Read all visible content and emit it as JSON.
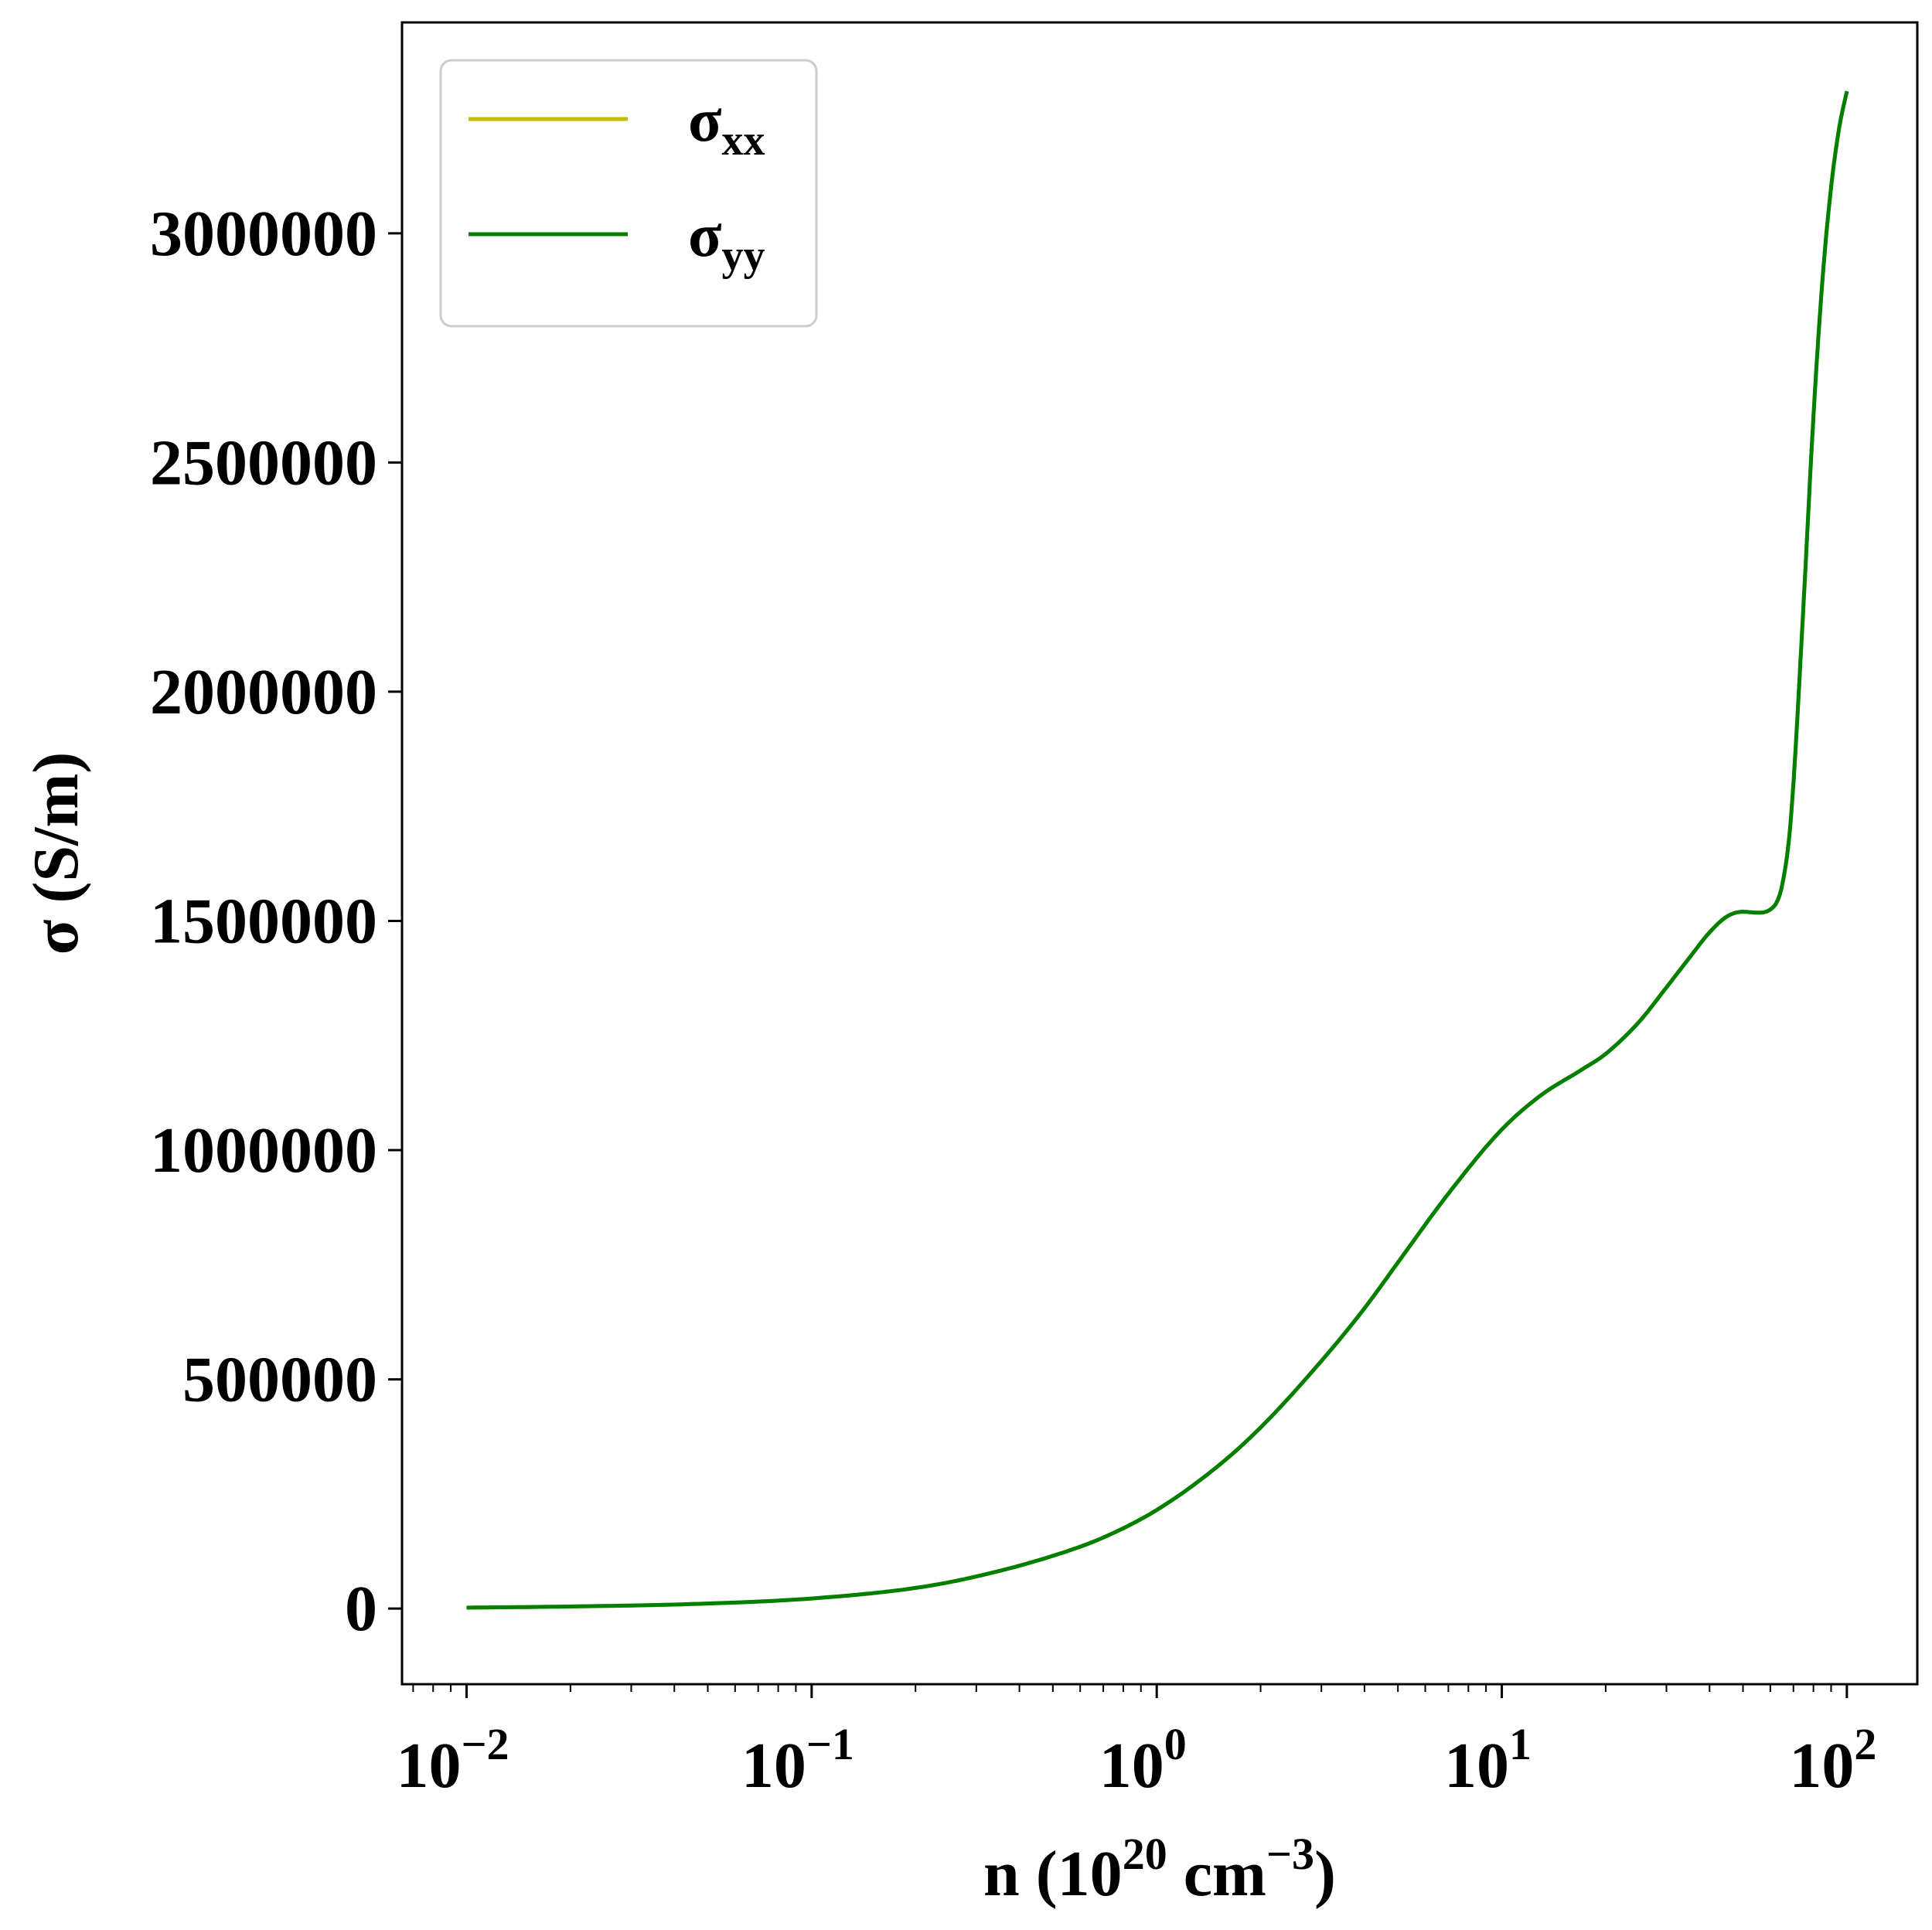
{
  "chart_data": {
    "type": "line",
    "title": "",
    "xlabel": {
      "prefix": "n (10",
      "sup1": "20",
      "mid": " cm",
      "sup2": "−3",
      "suffix": ")"
    },
    "ylabel": "σ (S/m)",
    "x_scale": "log",
    "xlim": [
      0.0065,
      160
    ],
    "ylim": [
      -165000,
      3460000
    ],
    "x_ticks": [
      {
        "value": 0.01,
        "base": "10",
        "exp": "−2"
      },
      {
        "value": 0.1,
        "base": "10",
        "exp": "−1"
      },
      {
        "value": 1,
        "base": "10",
        "exp": "0"
      },
      {
        "value": 10,
        "base": "10",
        "exp": "1"
      },
      {
        "value": 100,
        "base": "10",
        "exp": "2"
      }
    ],
    "y_ticks": [
      0,
      500000,
      1000000,
      1500000,
      2000000,
      2500000,
      3000000
    ],
    "y_tick_labels": [
      "0",
      "500000",
      "1000000",
      "1500000",
      "2000000",
      "2500000",
      "3000000"
    ],
    "grid": false,
    "legend": {
      "position": "top-left",
      "entries": [
        {
          "symbol": "σ",
          "sub": "xx",
          "color": "#bfbf00"
        },
        {
          "symbol": "σ",
          "sub": "yy",
          "color": "#007f00"
        }
      ]
    },
    "series": [
      {
        "name": "σxx",
        "color": "#bfbf00",
        "x": [
          0.01,
          0.02,
          0.05,
          0.1,
          0.2,
          0.3,
          0.5,
          0.7,
          1,
          1.5,
          2,
          3,
          4,
          5,
          7,
          10,
          13,
          17,
          20,
          25,
          30,
          35,
          40,
          45,
          50,
          55,
          60,
          63,
          65,
          68,
          70,
          75,
          80,
          85,
          90,
          95,
          100
        ],
        "y": [
          2000,
          4500,
          11000,
          22000,
          45000,
          70000,
          115000,
          155000,
          215000,
          310000,
          395000,
          540000,
          655000,
          755000,
          905000,
          1045000,
          1120000,
          1175000,
          1210000,
          1280000,
          1355000,
          1420000,
          1475000,
          1510000,
          1520000,
          1518000,
          1525000,
          1545000,
          1580000,
          1680000,
          1800000,
          2200000,
          2600000,
          2900000,
          3100000,
          3230000,
          3310000
        ]
      },
      {
        "name": "σyy",
        "color": "#007f00",
        "x": [
          0.01,
          0.02,
          0.05,
          0.1,
          0.2,
          0.3,
          0.5,
          0.7,
          1,
          1.5,
          2,
          3,
          4,
          5,
          7,
          10,
          13,
          17,
          20,
          25,
          30,
          35,
          40,
          45,
          50,
          55,
          60,
          63,
          65,
          68,
          70,
          75,
          80,
          85,
          90,
          95,
          100
        ],
        "y": [
          2000,
          4500,
          11000,
          22000,
          45000,
          70000,
          115000,
          155000,
          215000,
          310000,
          395000,
          540000,
          655000,
          755000,
          905000,
          1045000,
          1120000,
          1175000,
          1210000,
          1280000,
          1355000,
          1420000,
          1475000,
          1510000,
          1520000,
          1518000,
          1525000,
          1545000,
          1580000,
          1680000,
          1800000,
          2200000,
          2600000,
          2900000,
          3100000,
          3230000,
          3310000
        ]
      }
    ]
  }
}
